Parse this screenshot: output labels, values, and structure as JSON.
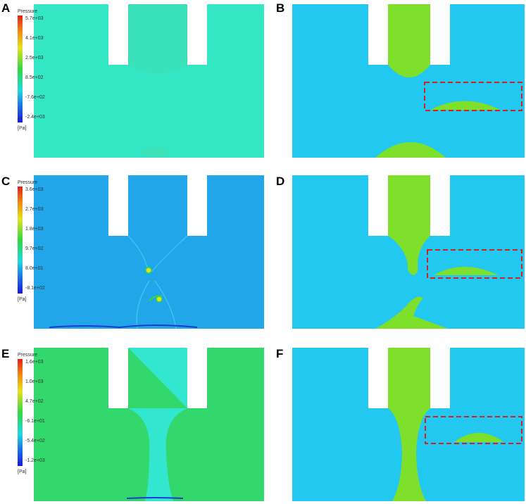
{
  "panels": [
    {
      "letter": "A",
      "type": "pressure",
      "colorbar": {
        "title": "Pressure",
        "unit": "[Pa]",
        "ticks": [
          "5.7e+03",
          "4.1e+03",
          "2.5e+03",
          "8.5e+02",
          "-7.6e+02",
          "-2.4e+03"
        ]
      }
    },
    {
      "letter": "B",
      "type": "phase"
    },
    {
      "letter": "C",
      "type": "pressure",
      "colorbar": {
        "title": "Pressure",
        "unit": "[Pa]",
        "ticks": [
          "3.6e+03",
          "2.7e+03",
          "1.8e+03",
          "9.7e+02",
          "8.0e+01",
          "-8.1e+02"
        ]
      }
    },
    {
      "letter": "D",
      "type": "phase"
    },
    {
      "letter": "E",
      "type": "pressure",
      "colorbar": {
        "title": "Pressure",
        "unit": "[Pa]",
        "ticks": [
          "1.6e+03",
          "1.0e+03",
          "4.7e+02",
          "-6.1e+01",
          "-5.4e+02",
          "-1.2e+03"
        ]
      }
    },
    {
      "letter": "F",
      "type": "phase"
    }
  ],
  "colors": {
    "pressure_bg_A": "#33e6c4",
    "pressure_bg_C": "#22a6ea",
    "pressure_bg_E": "#33d86c",
    "pressure_channel_E": "#33e6d0",
    "phase_continuous": "#22c8f0",
    "phase_dispersed": "#7ee02a",
    "highlight_box": "#d42020"
  }
}
